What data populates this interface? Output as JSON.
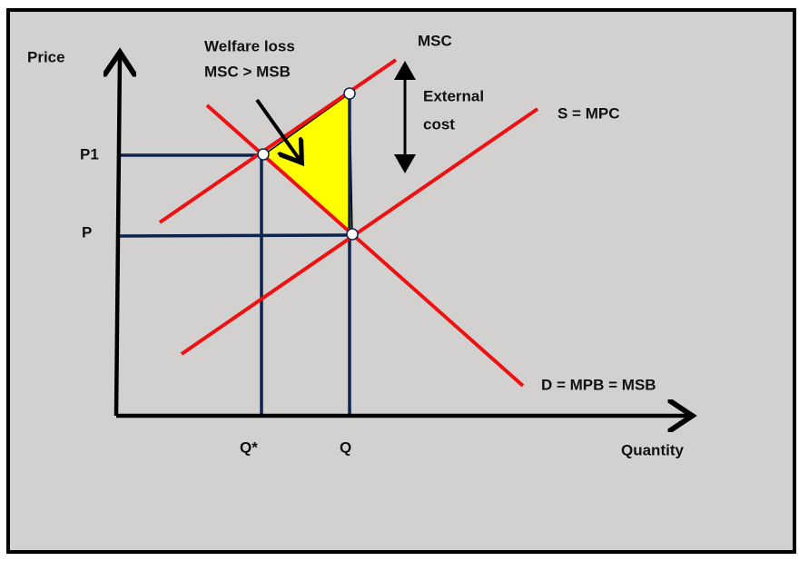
{
  "axes": {
    "y_label": "Price",
    "x_label": "Quantity"
  },
  "price_labels": [
    "P1",
    "P"
  ],
  "quantity_labels": [
    "Q*",
    "Q"
  ],
  "curves": {
    "msc": "MSC",
    "supply": "S = MPC",
    "demand": "D = MPB = MSB"
  },
  "annotations": {
    "welfare_loss": [
      "Welfare loss",
      "MSC > MSB"
    ],
    "external_cost": [
      "External",
      "cost"
    ]
  }
}
